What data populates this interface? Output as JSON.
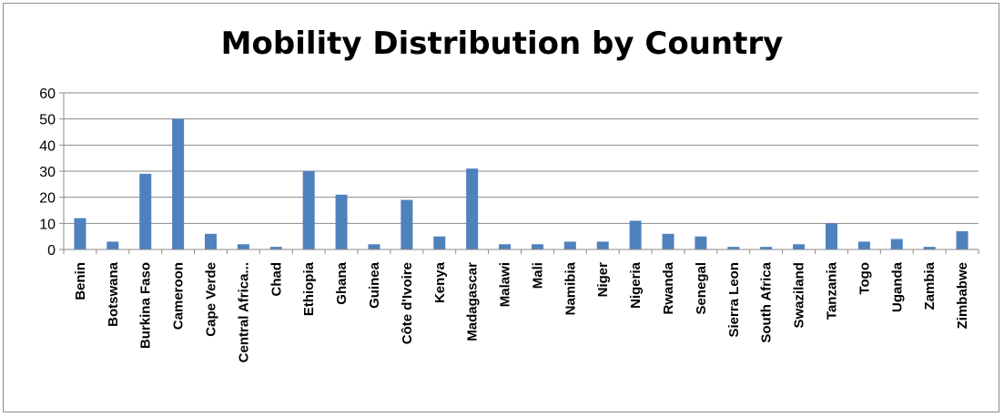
{
  "chart_data": {
    "type": "bar",
    "title": "Mobility Distribution by Country",
    "xlabel": "",
    "ylabel": "",
    "ylim": [
      0,
      60
    ],
    "yticks": [
      0,
      10,
      20,
      30,
      40,
      50,
      60
    ],
    "grid": true,
    "legend": "none",
    "bar_color": "#4f81bd",
    "categories": [
      "Benin",
      "Botswana",
      "Burkina Faso",
      "Cameroon",
      "Cape Verde",
      "Central Africa...",
      "Chad",
      "Ethiopia",
      "Ghana",
      "Guinea",
      "Côte d'Ivoire",
      "Kenya",
      "Madagascar",
      "Malawi",
      "Mali",
      "Namibia",
      "Niger",
      "Nigeria",
      "Rwanda",
      "Senegal",
      "Sierra Leon",
      "South Africa",
      "Swaziland",
      "Tanzania",
      "Togo",
      "Uganda",
      "Zambia",
      "Zimbabwe"
    ],
    "values": [
      12,
      3,
      29,
      50,
      6,
      2,
      1,
      30,
      21,
      2,
      19,
      5,
      31,
      2,
      2,
      3,
      3,
      11,
      6,
      5,
      1,
      1,
      2,
      10,
      3,
      4,
      1,
      7
    ]
  }
}
